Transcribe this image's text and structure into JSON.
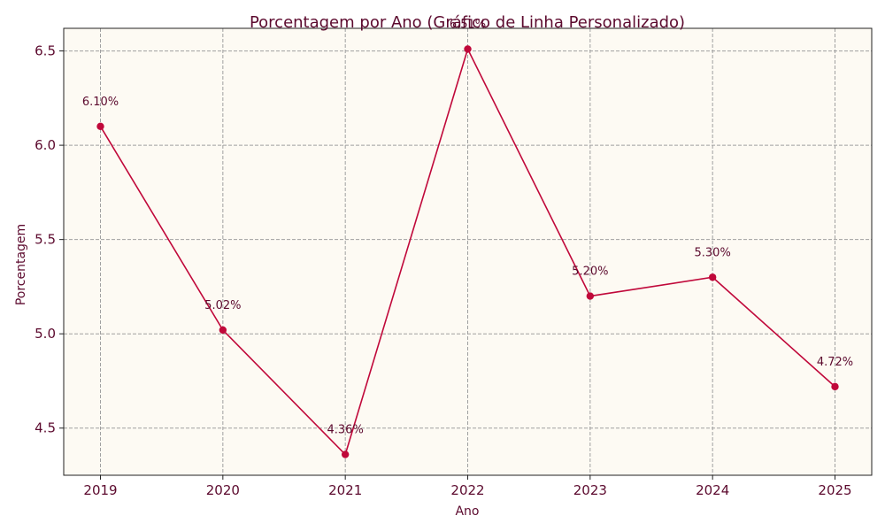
{
  "colors": {
    "text": "#5c0a2e",
    "line": "#c0083a",
    "plot_background": "#fdfaf3",
    "grid": "#a0a0a0",
    "axes": "#222222"
  },
  "chart_data": {
    "type": "line",
    "title": "Porcentagem por Ano (Gráfico de Linha Personalizado)",
    "xlabel": "Ano",
    "ylabel": "Porcentagem",
    "grid": true,
    "grid_style": "dashed",
    "xlim": [
      2018.7,
      2025.3
    ],
    "ylim": [
      4.25,
      6.62
    ],
    "x": [
      2019,
      2020,
      2021,
      2022,
      2023,
      2024,
      2025
    ],
    "x_tick_labels": [
      "2019",
      "2020",
      "2021",
      "2022",
      "2023",
      "2024",
      "2025"
    ],
    "y_ticks": [
      4.5,
      5.0,
      5.5,
      6.0,
      6.5
    ],
    "y_tick_labels": [
      "4.5",
      "5.0",
      "5.5",
      "6.0",
      "6.5"
    ],
    "series": [
      {
        "name": "Porcentagem",
        "values": [
          6.1,
          5.02,
          4.36,
          6.51,
          5.2,
          5.3,
          4.72
        ],
        "data_labels": [
          "6.10%",
          "5.02%",
          "4.36%",
          "6.51%",
          "5.20%",
          "5.30%",
          "4.72%"
        ]
      }
    ]
  }
}
